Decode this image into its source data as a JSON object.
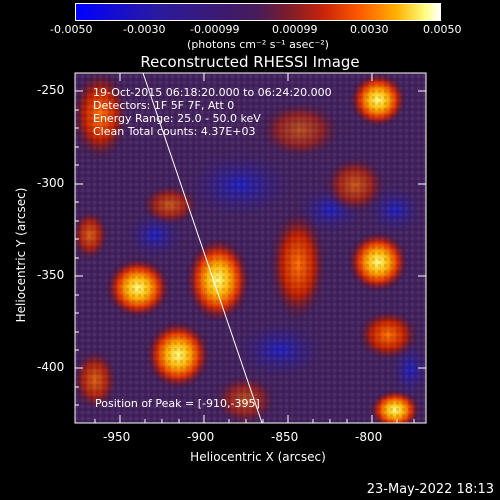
{
  "colorbar": {
    "ticks": [
      "-0.0050",
      "-0.0030",
      "-0.00099",
      "0.00099",
      "0.0030",
      "0.0050"
    ],
    "units": "(photons cm⁻² s⁻¹ asec⁻²)"
  },
  "plot": {
    "title": "Reconstructed RHESSI Image",
    "xlabel": "Heliocentric X (arcsec)",
    "ylabel": "Heliocentric Y (arcsec)",
    "xticks": [
      "-950",
      "-900",
      "-850",
      "-800"
    ],
    "yticks": [
      "-250",
      "-300",
      "-350",
      "-400"
    ],
    "info": [
      "19-Oct-2015 06:18:20.000 to 06:24:20.000",
      "Detectors: 1F 5F 7F, Att 0",
      "Energy Range: 25.0 - 50.0 keV",
      "Clean    Total counts: 4.37E+03"
    ],
    "peak": "Position of Peak = [-910,-395]"
  },
  "footer": "23-May-2022 18:13",
  "colors": {
    "background": "#000000",
    "axes": "#ffffff",
    "limb": "#ffffff"
  }
}
